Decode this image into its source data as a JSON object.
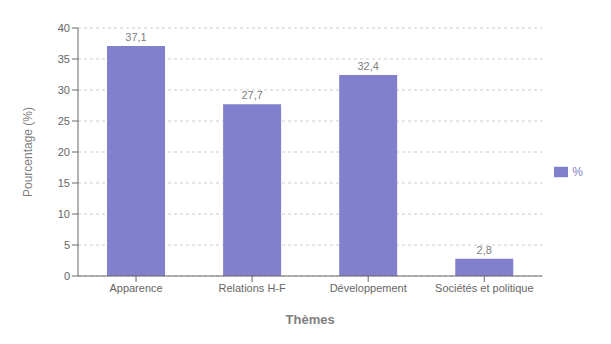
{
  "chart_data": {
    "type": "bar",
    "categories": [
      "Apparence",
      "Relations H-F",
      "Développement",
      "Sociétés et politique"
    ],
    "series": [
      {
        "name": "%",
        "color": "#8080cc",
        "values": [
          37.1,
          27.7,
          32.4,
          2.8
        ],
        "value_labels": [
          "37,1",
          "27,7",
          "32,4",
          "2,8"
        ]
      }
    ],
    "xlabel": "Thèmes",
    "ylabel": "Pourcentage (%)",
    "ylim": [
      0,
      40
    ],
    "yticks": [
      0,
      5,
      10,
      15,
      20,
      25,
      30,
      35,
      40
    ],
    "grid": true,
    "legend": "right",
    "data_labels": true
  }
}
